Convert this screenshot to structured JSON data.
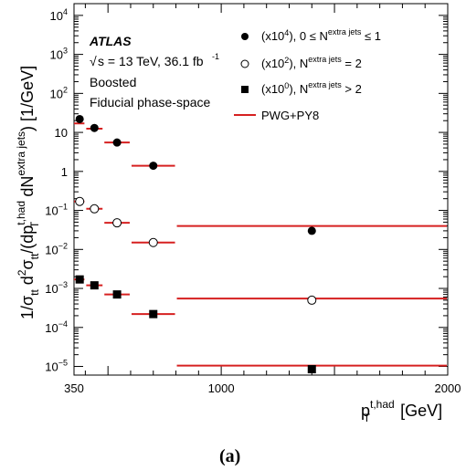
{
  "figure": {
    "caption": "(a)",
    "atlas_label": "ATLAS",
    "energy_text": "s = 13 TeV, 36.1 fb",
    "energy_sup": "-1",
    "region_label": "Boosted",
    "phase_space_label": "Fiducial phase-space"
  },
  "legend": {
    "entries": [
      {
        "marker": "filled-circle",
        "scale": "(x10",
        "scale_exp": "4",
        "rest": "), 0 ≤ N",
        "sup": "extra jets",
        "tail": " ≤ 1"
      },
      {
        "marker": "open-circle",
        "scale": "(x10",
        "scale_exp": "2",
        "rest": "), N",
        "sup": "extra jets",
        "tail": " = 2"
      },
      {
        "marker": "filled-square",
        "scale": "(x10",
        "scale_exp": "0",
        "rest": "), N",
        "sup": "extra jets",
        "tail": " > 2"
      },
      {
        "marker": "red-line",
        "label": "PWG+PY8"
      }
    ]
  },
  "axes": {
    "xlabel_main": "p",
    "xlabel_sup": "t,had",
    "xlabel_sub": "T",
    "xlabel_unit": " [GeV]",
    "ylabel_a": "1/σ",
    "ylabel_a_sub": "tt",
    "ylabel_b": " d",
    "ylabel_b_sup": "2",
    "ylabel_c": "σ",
    "ylabel_c_sub": "tt",
    "ylabel_d": "/(dp",
    "ylabel_d_sup": "t,had",
    "ylabel_d_sub": "T",
    "ylabel_e": " dN",
    "ylabel_e_sup": "extra jets",
    "ylabel_f": ") [1/GeV]",
    "x_ticks": [
      "350",
      "1000",
      "2000"
    ],
    "y_ticks": [
      {
        "base": "10",
        "exp": "4",
        "value": 10000
      },
      {
        "base": "10",
        "exp": "3",
        "value": 1000
      },
      {
        "base": "10",
        "exp": "2",
        "value": 100
      },
      {
        "base": "10",
        "exp": "",
        "value": 10
      },
      {
        "base": "1",
        "exp": "",
        "value": 1
      },
      {
        "base": "10",
        "exp": "−1",
        "value": 0.1
      },
      {
        "base": "10",
        "exp": "−2",
        "value": 0.01
      },
      {
        "base": "10",
        "exp": "−3",
        "value": 0.001
      },
      {
        "base": "10",
        "exp": "−4",
        "value": 0.0001
      },
      {
        "base": "10",
        "exp": "−5",
        "value": 1e-05
      }
    ]
  },
  "chart_data": {
    "type": "scatter",
    "xlabel": "p_T^{t,had} [GeV]",
    "ylabel": "1/σ_tt d²σ_tt/(dp_T^{t,had} dN^{extra jets}) [1/GeV]",
    "x_scale": "linear",
    "y_scale": "log",
    "xlim": [
      350,
      2000
    ],
    "ylim": [
      6e-06,
      20000
    ],
    "bin_edges": [
      350,
      400,
      480,
      600,
      800,
      2000
    ],
    "series": [
      {
        "name": "(x10^4), 0 ≤ N^extra jets ≤ 1",
        "marker": "filled-circle",
        "data_x": [
          375,
          440,
          540,
          700,
          1400
        ],
        "data_y": [
          22,
          13,
          5.5,
          1.4,
          0.03
        ],
        "pred_y": [
          17,
          12.5,
          5.5,
          1.4,
          0.04
        ]
      },
      {
        "name": "(x10^2), N^extra jets = 2",
        "marker": "open-circle",
        "data_x": [
          375,
          440,
          540,
          700,
          1400
        ],
        "data_y": [
          0.17,
          0.11,
          0.048,
          0.015,
          0.0005
        ],
        "pred_y": [
          0.17,
          0.11,
          0.048,
          0.015,
          0.00055
        ]
      },
      {
        "name": "(x10^0), N^extra jets > 2",
        "marker": "filled-square",
        "data_x": [
          375,
          440,
          540,
          700,
          1400
        ],
        "data_y": [
          0.0017,
          0.0012,
          0.0007,
          0.00022,
          8.5e-06
        ],
        "pred_y": [
          0.0017,
          0.0012,
          0.0007,
          0.00022,
          1.05e-05
        ]
      },
      {
        "name": "PWG+PY8",
        "marker": "red-line"
      }
    ],
    "colors": {
      "prediction": "#d62020",
      "data": "#000000"
    }
  }
}
